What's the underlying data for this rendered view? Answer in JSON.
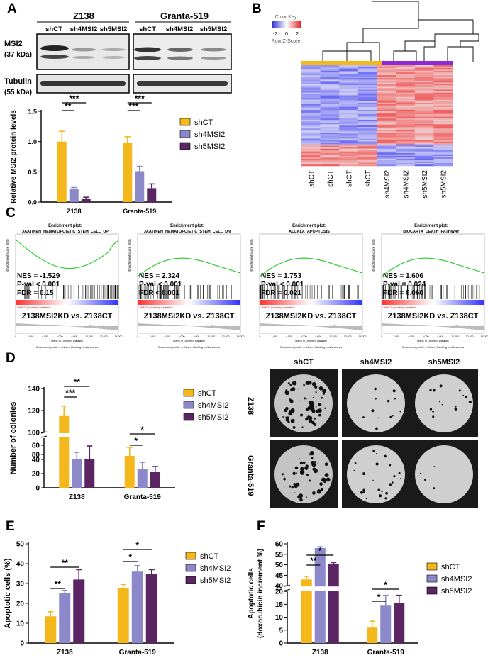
{
  "panels": {
    "A": "A",
    "B": "B",
    "C": "C",
    "D": "D",
    "E": "E",
    "F": "F"
  },
  "colors": {
    "shCT": "#F5B81C",
    "sh4MSI2": "#8C88C9",
    "sh5MSI2": "#5B2463"
  },
  "legend": [
    "shCT",
    "sh4MSI2",
    "sh5MSI2"
  ],
  "sig": {
    "s1": "*",
    "s2": "**",
    "s3": "***"
  },
  "western": {
    "cell_lines": [
      "Z138",
      "Granta-519"
    ],
    "lanes": [
      "shCT",
      "sh4MSI2",
      "sh5MSI2",
      "shCT",
      "sh4MSI2",
      "sh5MSI2"
    ],
    "msi2": "MSI2",
    "msi2_kda": "(37 kDa)",
    "tubulin": "Tubulin",
    "tubulin_kda": "(55 kDa)"
  },
  "heatmap": {
    "key_title": "Color Key",
    "key_ticks": [
      "-2",
      "0",
      "2"
    ],
    "key_label": "Row Z-Score",
    "columns": [
      "shCT",
      "shCT",
      "shCT",
      "shCT",
      "sh4MSI2",
      "sh4MSI2",
      "sh5MSI2",
      "sh5MSI2"
    ]
  },
  "gsea": [
    {
      "title": "Enrichment plot:",
      "subtitle": "JAATINEN_HEMATOPOIETIC_STEM_CELL_UP",
      "nes": "NES = -1.529",
      "pval": "P-val < 0.001",
      "fdr": "FDR = 0.15",
      "compare": "Z138MSI2KD  vs.  Z138CT",
      "ylabel": "Enrichment score (ES)"
    },
    {
      "title": "Enrichment plot:",
      "subtitle": "JAATINEN_HEMATOPOIETIC_STEM_CELL_DN",
      "nes": "NES = 2.324",
      "pval": "P-val < 0.001",
      "fdr": "FDR < 0.001",
      "compare": "Z138MSI2KD  vs.  Z138CT",
      "ylabel": "Enrichment score (ES)"
    },
    {
      "title": "Enrichment plot:",
      "subtitle": "ALCALA_APOPTOSIS",
      "nes": "NES = 1.753",
      "pval": "P-val < 0.001",
      "fdr": "FDR = 0.021",
      "compare": "Z138MSI2KD  vs.  Z138CT",
      "ylabel": "Enrichment score (ES)"
    },
    {
      "title": "Enrichment plot:",
      "subtitle": "BIOCARTA_DEATH_PATHWAY",
      "nes": "NES = 1.606",
      "pval": "P-val = 0.024",
      "fdr": "FDR = 0.060",
      "compare": "Z138MSI2KD  vs.  Z138CT",
      "ylabel": "Enrichment score (ES)"
    }
  ],
  "gsea_common": {
    "xlabel": "Rank in Ordered Dataset",
    "legend": "Enrichment profile  —  Hits  —  Ranking metric scores",
    "pos": "'shMSI2' (positively correlated)",
    "neg": "'shCT' (negatively correlated)",
    "xticks": [
      "0",
      "2,000",
      "4,000",
      "6,000",
      "8,000",
      "10,000",
      "12,000",
      "14,000"
    ]
  },
  "colonies": {
    "cols": [
      "shCT",
      "sh4MSI2",
      "sh5MSI2"
    ],
    "rows": [
      "Z138",
      "Granta-519"
    ]
  },
  "chart_data": [
    {
      "id": "A",
      "type": "bar",
      "categories": [
        "Z138",
        "Granta-519"
      ],
      "series": [
        {
          "name": "shCT",
          "values": [
            1.0,
            0.98
          ],
          "err": [
            0.17,
            0.1
          ]
        },
        {
          "name": "sh4MSI2",
          "values": [
            0.21,
            0.51
          ],
          "err": [
            0.03,
            0.08
          ]
        },
        {
          "name": "sh5MSI2",
          "values": [
            0.06,
            0.23
          ],
          "err": [
            0.02,
            0.07
          ]
        }
      ],
      "ylabel": "Relative MSI2 protein levels",
      "ylim": [
        0,
        1.5
      ],
      "yticks": [
        "0.0",
        "0.5",
        "1.0",
        "1.5"
      ],
      "ytickvals": [
        0,
        0.5,
        1,
        1.5
      ],
      "sig": [
        {
          "g": 0,
          "a": 0,
          "b": 1,
          "t": "**"
        },
        {
          "g": 0,
          "a": 0,
          "b": 2,
          "t": "***"
        },
        {
          "g": 1,
          "a": 0,
          "b": 1,
          "t": "***"
        },
        {
          "g": 1,
          "a": 0,
          "b": 2,
          "t": "***"
        }
      ]
    },
    {
      "id": "D",
      "type": "bar",
      "categories": [
        "Z138",
        "Granta-519"
      ],
      "series": [
        {
          "name": "shCT",
          "values": [
            115,
            45
          ],
          "err": [
            9,
            12
          ]
        },
        {
          "name": "sh4MSI2",
          "values": [
            40,
            27
          ],
          "err": [
            10,
            9
          ]
        },
        {
          "name": "sh5MSI2",
          "values": [
            41,
            22
          ],
          "err": [
            18,
            8
          ]
        }
      ],
      "ylabel": "Number of colonies",
      "ylim": [
        0,
        140
      ],
      "yticks": [
        "0",
        "20",
        "40",
        "60",
        "80",
        "100",
        "120",
        "140"
      ],
      "ytickvals": [
        0,
        20,
        40,
        60,
        80,
        100,
        120,
        140
      ],
      "sig": [
        {
          "g": 0,
          "a": 0,
          "b": 1,
          "t": "***"
        },
        {
          "g": 0,
          "a": 0,
          "b": 2,
          "t": "**"
        },
        {
          "g": 1,
          "a": 0,
          "b": 1,
          "t": "*"
        },
        {
          "g": 1,
          "a": 0,
          "b": 2,
          "t": "*"
        }
      ]
    },
    {
      "id": "E",
      "type": "bar",
      "categories": [
        "Z138",
        "Granta-519"
      ],
      "series": [
        {
          "name": "shCT",
          "values": [
            13.5,
            27.5
          ],
          "err": [
            2.3,
            2
          ]
        },
        {
          "name": "sh4MSI2",
          "values": [
            25,
            36
          ],
          "err": [
            1.5,
            3
          ]
        },
        {
          "name": "sh5MSI2",
          "values": [
            32,
            35
          ],
          "err": [
            5,
            2
          ]
        }
      ],
      "ylabel": "Apoptotic cells (%)",
      "ylim": [
        0,
        50
      ],
      "yticks": [
        "0",
        "10",
        "20",
        "30",
        "40",
        "50"
      ],
      "ytickvals": [
        0,
        10,
        20,
        30,
        40,
        50
      ],
      "sig": [
        {
          "g": 0,
          "a": 0,
          "b": 1,
          "t": "**"
        },
        {
          "g": 0,
          "a": 0,
          "b": 2,
          "t": "**"
        },
        {
          "g": 1,
          "a": 0,
          "b": 1,
          "t": "*"
        },
        {
          "g": 1,
          "a": 0,
          "b": 2,
          "t": "*"
        }
      ]
    },
    {
      "id": "F",
      "type": "bar",
      "categories": [
        "Z138",
        "Granta-519"
      ],
      "series": [
        {
          "name": "shCT",
          "values": [
            43,
            6
          ],
          "err": [
            1.5,
            2.5
          ]
        },
        {
          "name": "sh4MSI2",
          "values": [
            58,
            14.5
          ],
          "err": [
            0.6,
            4
          ]
        },
        {
          "name": "sh5MSI2",
          "values": [
            50.5,
            15.5
          ],
          "err": [
            0.6,
            3
          ]
        }
      ],
      "ylabel": "Apoptotic cells",
      "ylabel2": "(doxorubicin increment %)",
      "ylim": [
        0,
        60
      ],
      "yticks": [
        "0",
        "5",
        "10",
        "15",
        "20",
        "40",
        "45",
        "50",
        "55",
        "60"
      ],
      "ytickvals": [
        0,
        5,
        10,
        15,
        20,
        40,
        45,
        50,
        55,
        60
      ],
      "sig": [
        {
          "g": 0,
          "a": 0,
          "b": 1,
          "t": "**"
        },
        {
          "g": 0,
          "a": 0,
          "b": 2,
          "t": "*"
        },
        {
          "g": 1,
          "a": 0,
          "b": 1,
          "t": "*"
        },
        {
          "g": 1,
          "a": 0,
          "b": 2,
          "t": "*"
        }
      ]
    }
  ]
}
